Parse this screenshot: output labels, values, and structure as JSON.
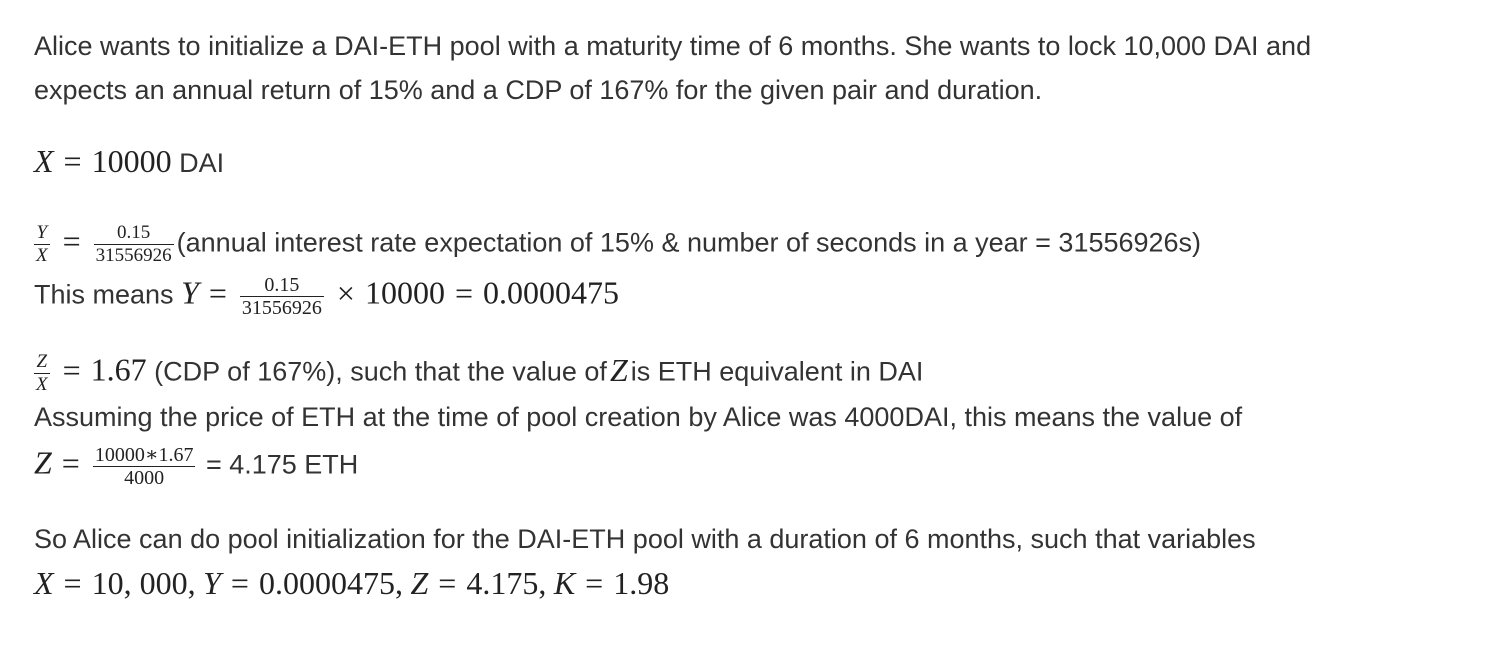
{
  "intro": {
    "line1": "Alice wants to initialize a DAI-ETH pool with a maturity time of 6 months. She wants to lock 10,000 DAI and",
    "line2": "expects an annual return of 15% and a CDP of 167% for the given pair and duration."
  },
  "eq_x": {
    "var": "X",
    "eq": "=",
    "value": "10000",
    "unit": "DAI"
  },
  "eq_ratio_y": {
    "num": "Y",
    "den": "X",
    "eq": "=",
    "frac_num": "0.15",
    "frac_den": "31556926",
    "note": "(annual interest rate expectation of 15% & number of seconds in a year = 31556926s)"
  },
  "eq_y": {
    "prefix": "This means",
    "var": "Y",
    "eq": "=",
    "frac_num": "0.15",
    "frac_den": "31556926",
    "times": "×",
    "mult": "10000",
    "eq2": "=",
    "result": "0.0000475"
  },
  "eq_ratio_z": {
    "num": "Z",
    "den": "X",
    "eq": "=",
    "value": "1.67",
    "note_before": "(CDP of 167%), such that the value of",
    "var": "Z",
    "note_after": "is ETH equivalent in DAI"
  },
  "assumption": {
    "text": "Assuming the price of ETH at the time of pool creation by Alice was 4000DAI, this means the value of"
  },
  "eq_z": {
    "var": "Z",
    "eq": "=",
    "frac_num": "10000∗1.67",
    "frac_den": "4000",
    "result": "= 4.175 ETH"
  },
  "conclusion": {
    "text": "So Alice can do pool initialization for the DAI-ETH pool with a duration of 6 months, such that variables"
  },
  "final_eq": {
    "x_var": "X",
    "x_eq": "=",
    "x_val": "10, 000,",
    "y_var": "Y",
    "y_eq": "=",
    "y_val": "0.0000475,",
    "z_var": "Z",
    "z_eq": "=",
    "z_val": "4.175,",
    "k_var": "K",
    "k_eq": "=",
    "k_val": "1.98"
  }
}
